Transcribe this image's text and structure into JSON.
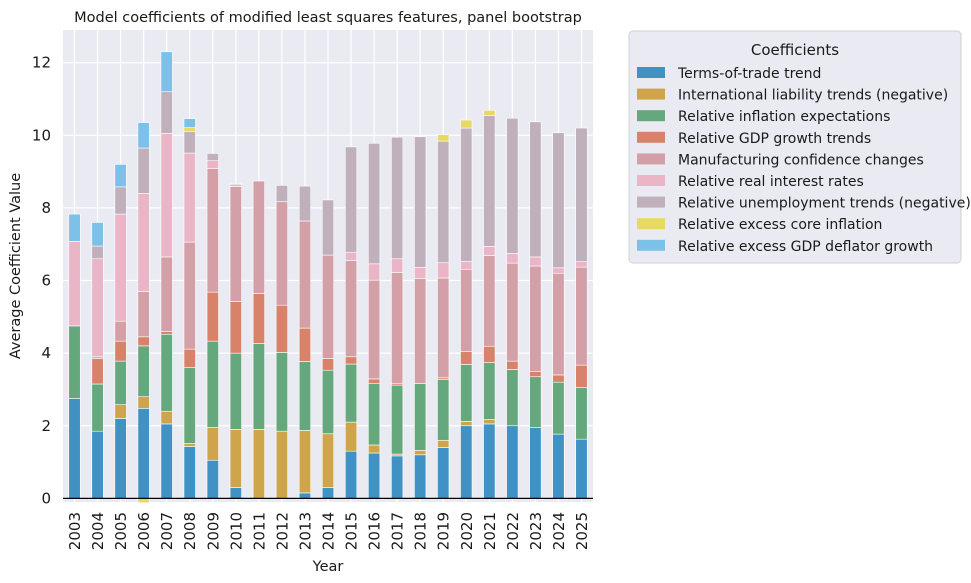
{
  "chart_data": {
    "type": "bar",
    "stacked": true,
    "title": "Model coefficients of modified least squares features, panel bootstrap",
    "xlabel": "Year",
    "ylabel": "Average Coefficient Value",
    "ylim": [
      -0.1,
      12.9
    ],
    "yticks": [
      0,
      2,
      4,
      6,
      8,
      10,
      12
    ],
    "grid": true,
    "legend_title": "Coefficients",
    "legend_position": "outside-right-top",
    "categories": [
      "2003",
      "2004",
      "2005",
      "2006",
      "2007",
      "2008",
      "2009",
      "2010",
      "2011",
      "2012",
      "2013",
      "2014",
      "2015",
      "2016",
      "2017",
      "2018",
      "2019",
      "2020",
      "2021",
      "2022",
      "2023",
      "2024",
      "2025"
    ],
    "series": [
      {
        "name": "Terms-of-trade trend",
        "color": "#3f92c3",
        "values": [
          2.75,
          1.85,
          2.2,
          2.48,
          2.05,
          1.43,
          1.05,
          0.3,
          0.0,
          0.0,
          0.15,
          0.3,
          1.3,
          1.25,
          1.17,
          1.2,
          1.4,
          2.0,
          2.05,
          2.0,
          1.95,
          1.77,
          1.63
        ]
      },
      {
        "name": "International liability trends (negative)",
        "color": "#cfa54c",
        "values": [
          0.0,
          0.0,
          0.38,
          0.32,
          0.35,
          0.08,
          0.9,
          1.6,
          1.9,
          1.85,
          1.72,
          1.48,
          0.8,
          0.22,
          0.05,
          0.12,
          0.2,
          0.12,
          0.12,
          0.0,
          0.0,
          0.0,
          0.0
        ]
      },
      {
        "name": "Relative inflation expectations",
        "color": "#66a87d",
        "values": [
          2.0,
          1.3,
          1.2,
          1.4,
          2.12,
          2.1,
          2.38,
          2.1,
          2.37,
          2.17,
          1.9,
          1.75,
          1.6,
          1.7,
          1.9,
          1.84,
          1.67,
          1.57,
          1.57,
          1.55,
          1.4,
          1.43,
          1.42
        ]
      },
      {
        "name": "Relative GDP growth trends",
        "color": "#d8826a",
        "values": [
          0.0,
          0.7,
          0.55,
          0.25,
          0.08,
          0.5,
          1.35,
          1.42,
          1.37,
          1.3,
          0.92,
          0.32,
          0.2,
          0.12,
          0.05,
          0.0,
          0.05,
          0.35,
          0.45,
          0.23,
          0.15,
          0.2,
          0.62
        ]
      },
      {
        "name": "Manufacturing confidence changes",
        "color": "#d4a0a8",
        "values": [
          0.0,
          0.05,
          0.55,
          1.25,
          2.05,
          2.95,
          3.4,
          3.17,
          3.1,
          2.85,
          2.95,
          2.85,
          2.65,
          2.72,
          3.05,
          2.9,
          2.75,
          2.27,
          2.5,
          2.7,
          2.9,
          2.8,
          2.7
        ]
      },
      {
        "name": "Relative real interest rates",
        "color": "#eab5c6",
        "values": [
          2.33,
          2.7,
          2.95,
          2.7,
          3.4,
          2.45,
          0.22,
          0.05,
          0.0,
          0.0,
          0.0,
          0.0,
          0.23,
          0.45,
          0.38,
          0.3,
          0.42,
          0.22,
          0.25,
          0.27,
          0.25,
          0.15,
          0.15
        ]
      },
      {
        "name": "Relative unemployment trends (negative)",
        "color": "#bfb0bb",
        "values": [
          0.0,
          0.35,
          0.75,
          1.25,
          1.15,
          0.6,
          0.2,
          0.03,
          0.0,
          0.45,
          0.96,
          1.52,
          2.9,
          3.32,
          3.35,
          3.6,
          3.35,
          3.67,
          3.6,
          3.72,
          3.72,
          3.72,
          3.68
        ]
      },
      {
        "name": "Relative excess core inflation",
        "color": "#e8d962",
        "values": [
          0.0,
          0.0,
          0.0,
          -0.12,
          0.0,
          0.1,
          0.0,
          0.0,
          0.0,
          0.0,
          0.0,
          0.0,
          0.0,
          0.0,
          0.0,
          0.0,
          0.18,
          0.22,
          0.15,
          0.0,
          0.0,
          0.0,
          0.0
        ]
      },
      {
        "name": "Relative excess GDP deflator growth",
        "color": "#7cc1e8",
        "values": [
          0.75,
          0.65,
          0.62,
          0.7,
          1.1,
          0.25,
          0.0,
          0.0,
          0.0,
          0.0,
          0.0,
          0.0,
          0.0,
          0.0,
          0.0,
          0.0,
          0.0,
          0.0,
          0.0,
          0.0,
          0.0,
          0.0,
          0.0
        ]
      }
    ]
  }
}
